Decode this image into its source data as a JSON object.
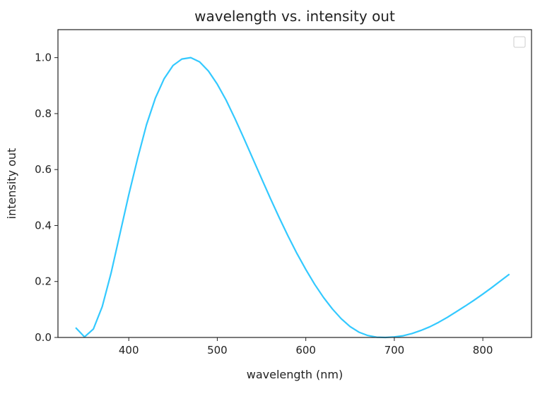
{
  "chart_data": {
    "type": "line",
    "title": "wavelength vs. intensity out",
    "xlabel": "wavelength (nm)",
    "ylabel": "intensity out",
    "xlim": [
      320,
      855
    ],
    "ylim": [
      0,
      1.1
    ],
    "xticks": [
      400,
      500,
      600,
      700,
      800
    ],
    "yticks": [
      0.0,
      0.2,
      0.4,
      0.6,
      0.8,
      1.0
    ],
    "xtick_labels": [
      "400",
      "500",
      "600",
      "700",
      "800"
    ],
    "ytick_labels": [
      "0.0",
      "0.2",
      "0.4",
      "0.6",
      "0.8",
      "1.0"
    ],
    "grid": false,
    "legend": {
      "placement": "top-right",
      "entries": []
    },
    "series": [
      {
        "color": "#33c9ff",
        "x": [
          340,
          350,
          360,
          370,
          380,
          390,
          400,
          410,
          420,
          430,
          440,
          450,
          460,
          470,
          480,
          490,
          500,
          510,
          520,
          530,
          540,
          550,
          560,
          570,
          580,
          590,
          600,
          610,
          620,
          630,
          640,
          650,
          660,
          670,
          680,
          690,
          700,
          710,
          720,
          730,
          740,
          750,
          760,
          770,
          780,
          790,
          800,
          810,
          820,
          830
        ],
        "y": [
          0.035,
          0.002,
          0.03,
          0.11,
          0.23,
          0.37,
          0.51,
          0.64,
          0.76,
          0.855,
          0.925,
          0.972,
          0.995,
          1.0,
          0.985,
          0.952,
          0.905,
          0.848,
          0.782,
          0.712,
          0.64,
          0.568,
          0.497,
          0.428,
          0.362,
          0.3,
          0.243,
          0.19,
          0.143,
          0.102,
          0.067,
          0.039,
          0.019,
          0.007,
          0.001,
          0.0,
          0.002,
          0.006,
          0.014,
          0.025,
          0.038,
          0.054,
          0.072,
          0.092,
          0.112,
          0.133,
          0.155,
          0.178,
          0.202,
          0.226
        ]
      }
    ]
  }
}
